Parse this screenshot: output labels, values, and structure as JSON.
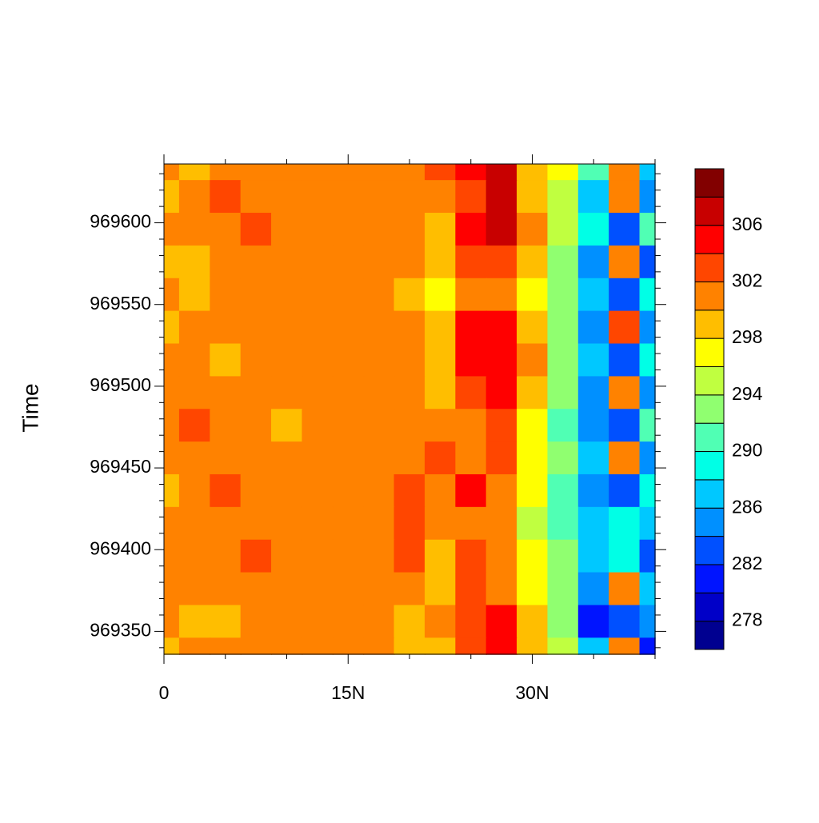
{
  "chart_data": {
    "type": "contour",
    "y_label": "Time",
    "x": [
      0,
      2.5,
      5,
      7.5,
      10,
      12.5,
      15,
      17.5,
      20,
      22.5,
      25,
      27.5,
      30,
      32.5,
      35,
      37.5,
      40
    ],
    "y": [
      969636,
      969616,
      969596,
      969576,
      969556,
      969536,
      969516,
      969496,
      969476,
      969456,
      969436,
      969416,
      969396,
      969376,
      969356,
      969336
    ],
    "values": [
      [
        301,
        299,
        301,
        301,
        301,
        301,
        301,
        301,
        301,
        303,
        305,
        307,
        299,
        297,
        291,
        300,
        287
      ],
      [
        299,
        301,
        303,
        301,
        301,
        301,
        301,
        301,
        301,
        301,
        303,
        307,
        299,
        295,
        287,
        300,
        285
      ],
      [
        301,
        301,
        301,
        303,
        301,
        301,
        301,
        301,
        301,
        299,
        305,
        307,
        301,
        295,
        289,
        282,
        290
      ],
      [
        299,
        299,
        301,
        301,
        301,
        301,
        301,
        301,
        301,
        299,
        303,
        303,
        299,
        293,
        285,
        300,
        283
      ],
      [
        301,
        299,
        301,
        301,
        301,
        301,
        301,
        301,
        299,
        297,
        301,
        301,
        297,
        293,
        287,
        282,
        289
      ],
      [
        299,
        301,
        301,
        301,
        301,
        301,
        301,
        301,
        301,
        299,
        305,
        305,
        299,
        293,
        285,
        302,
        285
      ],
      [
        301,
        301,
        299,
        301,
        301,
        301,
        301,
        301,
        301,
        299,
        305,
        305,
        301,
        293,
        287,
        282,
        289
      ],
      [
        301,
        301,
        301,
        301,
        301,
        301,
        301,
        301,
        301,
        299,
        303,
        305,
        299,
        293,
        285,
        301,
        285
      ],
      [
        301,
        303,
        301,
        301,
        299,
        301,
        301,
        301,
        301,
        301,
        301,
        303,
        297,
        291,
        285,
        282,
        291
      ],
      [
        301,
        301,
        301,
        301,
        301,
        301,
        301,
        301,
        301,
        303,
        301,
        303,
        297,
        293,
        287,
        301,
        285
      ],
      [
        299,
        301,
        303,
        301,
        301,
        301,
        301,
        301,
        303,
        301,
        305,
        301,
        297,
        291,
        285,
        283,
        289
      ],
      [
        301,
        301,
        301,
        301,
        301,
        301,
        301,
        301,
        303,
        301,
        301,
        301,
        295,
        291,
        287,
        289,
        287
      ],
      [
        301,
        301,
        301,
        303,
        301,
        301,
        301,
        301,
        303,
        299,
        303,
        301,
        297,
        293,
        287,
        289,
        283
      ],
      [
        301,
        301,
        301,
        301,
        301,
        301,
        301,
        301,
        301,
        299,
        303,
        301,
        297,
        293,
        285,
        301,
        287
      ],
      [
        301,
        299,
        299,
        301,
        301,
        301,
        301,
        301,
        299,
        301,
        303,
        305,
        299,
        293,
        281,
        283,
        285
      ],
      [
        299,
        301,
        301,
        301,
        301,
        301,
        301,
        301,
        299,
        299,
        303,
        305,
        299,
        295,
        287,
        301,
        280
      ]
    ],
    "xlim": [
      0,
      40
    ],
    "ylim": [
      969336,
      969636
    ],
    "xticks": [
      0,
      {
        "value": 15,
        "label": "15N"
      },
      {
        "value": 30,
        "label": "30N"
      }
    ],
    "xminorticks": [
      5,
      10,
      20,
      25,
      35,
      40
    ],
    "yticks": [
      969350,
      969400,
      969450,
      969500,
      969550,
      969600
    ],
    "yminorticks": [
      969340,
      969360,
      969370,
      969380,
      969390,
      969410,
      969420,
      969430,
      969440,
      969460,
      969470,
      969480,
      969490,
      969510,
      969520,
      969530,
      969540,
      969560,
      969570,
      969580,
      969590,
      969610,
      969620,
      969630
    ],
    "levels": [
      278,
      280,
      282,
      284,
      286,
      288,
      290,
      292,
      294,
      296,
      298,
      300,
      302,
      304,
      306,
      308
    ],
    "colors": [
      "#000090",
      "#0000c8",
      "#0014ff",
      "#0050ff",
      "#0090ff",
      "#00c8ff",
      "#00ffe6",
      "#50ffb4",
      "#90ff70",
      "#c0ff40",
      "#ffff00",
      "#ffbe00",
      "#ff8200",
      "#ff4600",
      "#ff0000",
      "#c80000",
      "#820000"
    ],
    "colorbar_ticks": [
      278,
      282,
      286,
      290,
      294,
      298,
      302,
      306
    ]
  }
}
